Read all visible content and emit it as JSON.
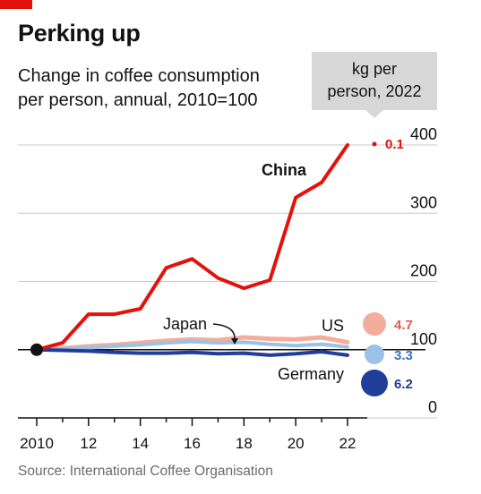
{
  "header": {
    "title": "Perking up",
    "subtitle_line1": "Change in coffee consumption",
    "subtitle_line2": "per person, annual, 2010=100"
  },
  "unit_box": {
    "line1": "kg per",
    "line2": "person, 2022"
  },
  "source": "Source: International Coffee Organisation",
  "colors": {
    "china": "#e3120b",
    "us": "#f4ad9c",
    "japan": "#9cc1e6",
    "germany": "#1f3d99",
    "grid": "#c8c8c8",
    "unit_box": "#d7d7d7",
    "us_value_text": "#e8574c",
    "japan_value_text": "#3a73c9",
    "germany_value_text": "#1f3d99"
  },
  "chart_data": {
    "type": "line",
    "title": "Perking up",
    "subtitle": "Change in coffee consumption per person, annual, 2010=100",
    "x_ticks": [
      "2010",
      "12",
      "14",
      "16",
      "18",
      "20",
      "22"
    ],
    "x_tick_values": [
      2010,
      2012,
      2014,
      2016,
      2018,
      2020,
      2022
    ],
    "y_ticks": [
      "0",
      "100",
      "200",
      "300",
      "400"
    ],
    "y_tick_values": [
      0,
      100,
      200,
      300,
      400
    ],
    "xlim": [
      2010,
      2022
    ],
    "ylim": [
      0,
      400
    ],
    "grid": true,
    "x": [
      2010,
      2011,
      2012,
      2013,
      2014,
      2015,
      2016,
      2017,
      2018,
      2019,
      2020,
      2021,
      2022
    ],
    "series": [
      {
        "name": "China",
        "color_key": "china",
        "width": 4,
        "values": [
          100,
          110,
          152,
          152,
          160,
          220,
          233,
          205,
          190,
          202,
          323,
          345,
          400
        ],
        "kg_per_person_2022": "0.1"
      },
      {
        "name": "US",
        "color_key": "us",
        "width": 5,
        "values": [
          100,
          102,
          105,
          107,
          110,
          113,
          115,
          114,
          118,
          116,
          115,
          118,
          111
        ],
        "kg_per_person_2022": "4.7"
      },
      {
        "name": "Japan",
        "color_key": "japan",
        "width": 4,
        "values": [
          100,
          101,
          103,
          105,
          107,
          110,
          112,
          110,
          111,
          108,
          106,
          108,
          104
        ],
        "kg_per_person_2022": "3.3"
      },
      {
        "name": "Germany",
        "color_key": "germany",
        "width": 4,
        "values": [
          100,
          99,
          98,
          96,
          95,
          95,
          96,
          94,
          95,
          92,
          94,
          97,
          92
        ],
        "kg_per_person_2022": "6.2"
      }
    ]
  }
}
